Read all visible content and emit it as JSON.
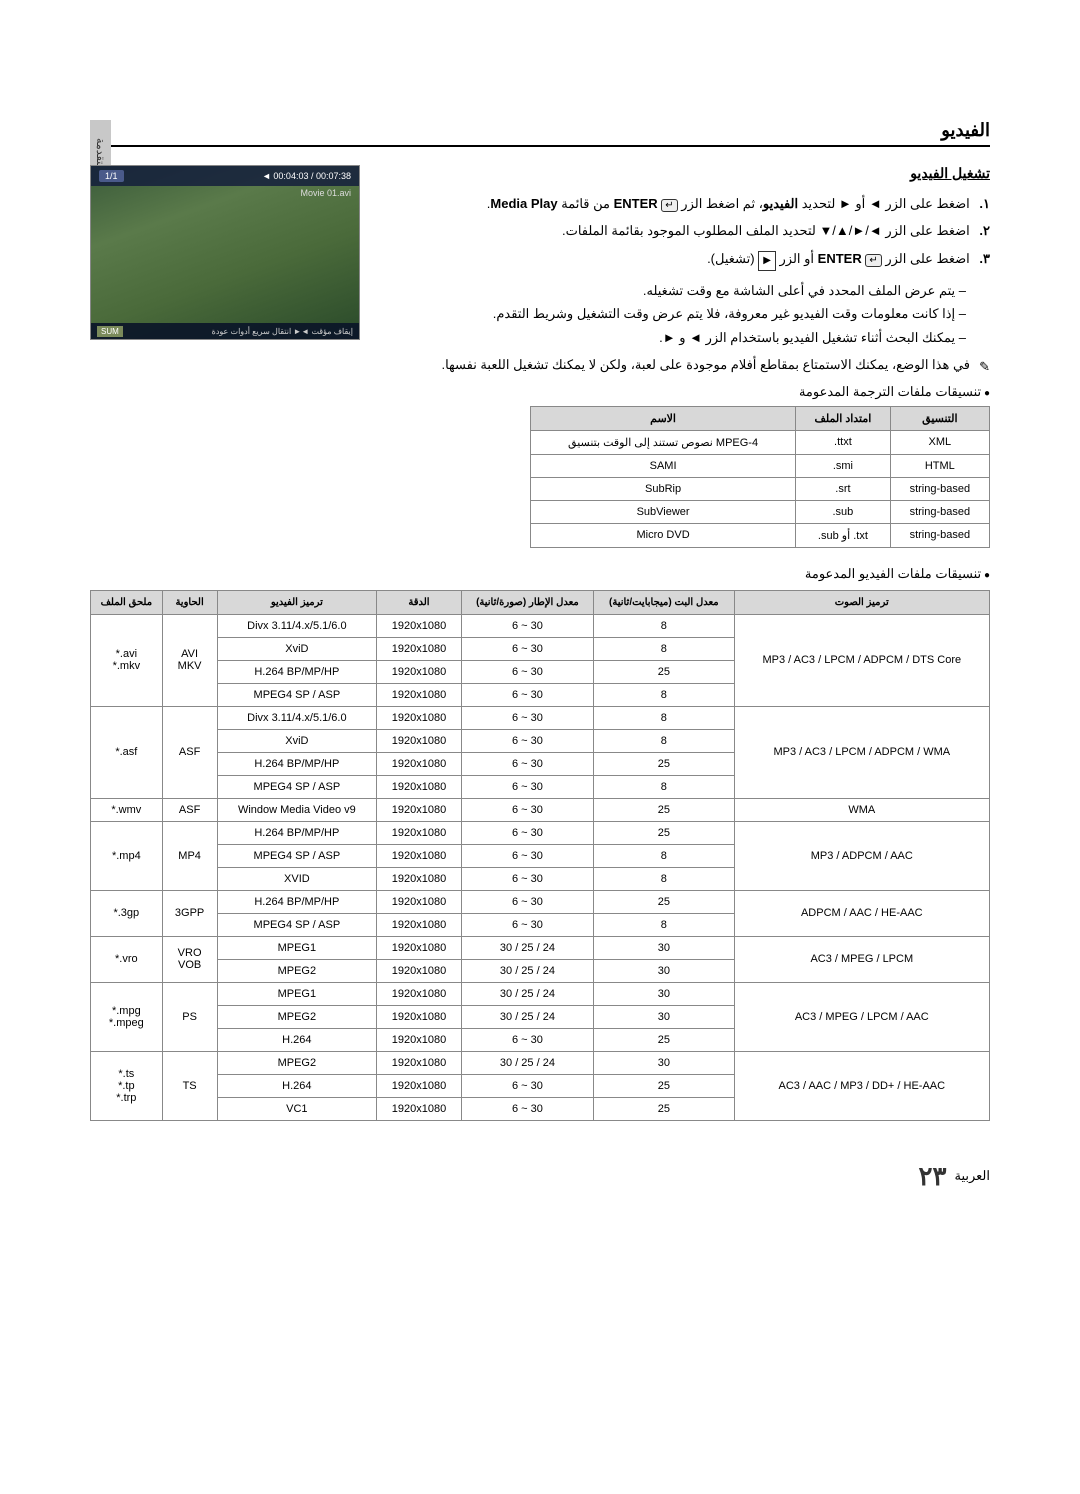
{
  "side_tab": {
    "line1": "٠٣",
    "line2": "الميزات المتقدمة"
  },
  "section_title": "الفيديو",
  "subsection_title": "تشغيل الفيديو",
  "steps": [
    {
      "num": "١.",
      "text_parts": [
        "اضغط على الزر ◄ أو ► لتحديد ",
        "الفيديو",
        "، ثم اضغط الزر ",
        "ENTER",
        " من قائمة ",
        "Media Play",
        "."
      ]
    },
    {
      "num": "٢.",
      "text": "اضغط على الزر ◄/►/▲/▼ لتحديد الملف المطلوب الموجود بقائمة الملفات."
    },
    {
      "num": "٣.",
      "text_parts": [
        "اضغط على الزر ",
        "ENTER",
        " أو الزر ",
        "▶",
        " (تشغيل)."
      ]
    }
  ],
  "sub_items": [
    "يتم عرض الملف المحدد في أعلى الشاشة مع وقت تشغيله.",
    "إذا كانت معلومات وقت الفيديو غير معروفة، فلا يتم عرض وقت التشغيل وشريط التقدم.",
    "يمكنك البحث أثناء تشغيل الفيديو باستخدام الزر ◄ و ►."
  ],
  "note": "في هذا الوضع، يمكنك الاستمتاع بمقاطع أفلام موجودة على لعبة، ولكن لا يمكنك تشغيل اللعبة نفسها.",
  "bullet_subtitle": "تنسيقات ملفات الترجمة المدعومة",
  "bullet_video": "تنسيقات ملفات الفيديو المدعومة",
  "screenshot": {
    "counter": "1/1",
    "time": "00:04:03 / 00:07:38",
    "filename": "Movie 01.avi",
    "sum": "SUM",
    "bottom": "إيقاف مؤقت  ◄► انتقال سريع  أدوات  عودة"
  },
  "subtitle_table": {
    "headers": [
      "الاسم",
      "امتداد الملف",
      "التنسيق"
    ],
    "rows": [
      [
        "نصوص تستند إلى الوقت بتنسيق MPEG-4",
        ".ttxt",
        "XML"
      ],
      [
        "SAMI",
        ".smi",
        "HTML"
      ],
      [
        "SubRip",
        ".srt",
        "string-based"
      ],
      [
        "SubViewer",
        ".sub",
        "string-based"
      ],
      [
        "Micro DVD",
        ".sub أو .txt",
        "string-based"
      ]
    ]
  },
  "video_table": {
    "headers": [
      "ملحق الملف",
      "الحاوية",
      "ترميز الفيديو",
      "الدقة",
      "معدل الإطار (صورة/ثانية)",
      "معدل البت (ميجابايت/ثانية)",
      "ترميز الصوت"
    ],
    "groups": [
      {
        "ext": "*.avi\n*.mkv",
        "container": "AVI\nMKV",
        "audio": "MP3 / AC3 / LPCM / ADPCM / DTS Core",
        "rows": [
          [
            "Divx 3.11/4.x/5.1/6.0",
            "1920x1080",
            "6 ~ 30",
            "8"
          ],
          [
            "XviD",
            "1920x1080",
            "6 ~ 30",
            "8"
          ],
          [
            "H.264 BP/MP/HP",
            "1920x1080",
            "6 ~ 30",
            "25"
          ],
          [
            "MPEG4 SP / ASP",
            "1920x1080",
            "6 ~ 30",
            "8"
          ]
        ]
      },
      {
        "ext": "*.asf",
        "container": "ASF",
        "audio": "MP3 / AC3 / LPCM / ADPCM / WMA",
        "rows": [
          [
            "Divx 3.11/4.x/5.1/6.0",
            "1920x1080",
            "6 ~ 30",
            "8"
          ],
          [
            "XviD",
            "1920x1080",
            "6 ~ 30",
            "8"
          ],
          [
            "H.264 BP/MP/HP",
            "1920x1080",
            "6 ~ 30",
            "25"
          ],
          [
            "MPEG4 SP / ASP",
            "1920x1080",
            "6 ~ 30",
            "8"
          ]
        ]
      },
      {
        "ext": "*.wmv",
        "container": "ASF",
        "audio": "WMA",
        "rows": [
          [
            "Window Media Video v9",
            "1920x1080",
            "6 ~ 30",
            "25"
          ]
        ]
      },
      {
        "ext": "*.mp4",
        "container": "MP4",
        "audio": "MP3 / ADPCM / AAC",
        "rows": [
          [
            "H.264 BP/MP/HP",
            "1920x1080",
            "6 ~ 30",
            "25"
          ],
          [
            "MPEG4 SP / ASP",
            "1920x1080",
            "6 ~ 30",
            "8"
          ],
          [
            "XVID",
            "1920x1080",
            "6 ~ 30",
            "8"
          ]
        ]
      },
      {
        "ext": "*.3gp",
        "container": "3GPP",
        "audio": "ADPCM / AAC / HE-AAC",
        "rows": [
          [
            "H.264 BP/MP/HP",
            "1920x1080",
            "6 ~ 30",
            "25"
          ],
          [
            "MPEG4 SP / ASP",
            "1920x1080",
            "6 ~ 30",
            "8"
          ]
        ]
      },
      {
        "ext": "*.vro",
        "container": "VRO\nVOB",
        "audio": "AC3 / MPEG / LPCM",
        "rows": [
          [
            "MPEG1",
            "1920x1080",
            "30 / 25 / 24",
            "30"
          ],
          [
            "MPEG2",
            "1920x1080",
            "30 / 25 / 24",
            "30"
          ]
        ]
      },
      {
        "ext": "*.mpg\n*.mpeg",
        "container": "PS",
        "audio": "AC3 / MPEG / LPCM / AAC",
        "rows": [
          [
            "MPEG1",
            "1920x1080",
            "30 / 25 / 24",
            "30"
          ],
          [
            "MPEG2",
            "1920x1080",
            "30 / 25 / 24",
            "30"
          ],
          [
            "H.264",
            "1920x1080",
            "6 ~ 30",
            "25"
          ]
        ]
      },
      {
        "ext": "*.ts\n*.tp\n*.trp",
        "container": "TS",
        "audio": "AC3 / AAC / MP3 / DD+ / HE-AAC",
        "rows": [
          [
            "MPEG2",
            "1920x1080",
            "30 / 25 / 24",
            "30"
          ],
          [
            "H.264",
            "1920x1080",
            "6 ~ 30",
            "25"
          ],
          [
            "VC1",
            "1920x1080",
            "6 ~ 30",
            "25"
          ]
        ]
      }
    ]
  },
  "footer": {
    "lang": "العربية",
    "page": "٢٣"
  }
}
